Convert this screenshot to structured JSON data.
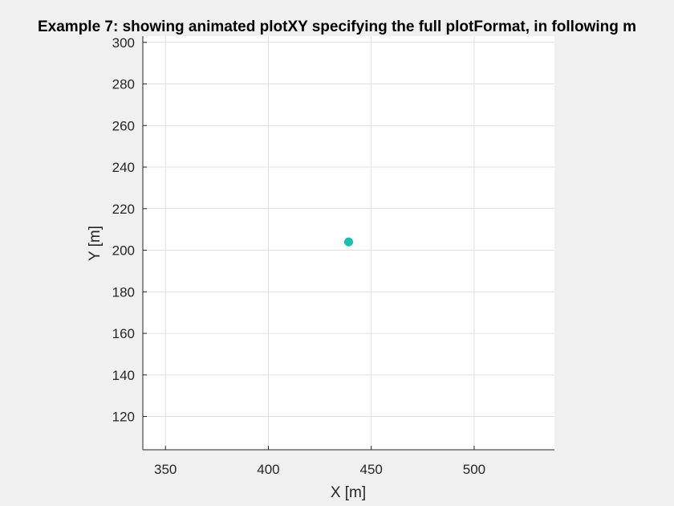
{
  "chart_data": {
    "type": "scatter",
    "title": "Example 7: showing animated plotXY specifying the full plotFormat, in following m",
    "xlabel": "X [m]",
    "ylabel": "Y [m]",
    "xlim": [
      339,
      539
    ],
    "ylim": [
      104,
      303
    ],
    "xticks": [
      350,
      400,
      450,
      500
    ],
    "yticks": [
      120,
      140,
      160,
      180,
      200,
      220,
      240,
      260,
      280,
      300
    ],
    "grid": true,
    "series": [
      {
        "color": "#1ABFAF",
        "points": [
          {
            "x": 439,
            "y": 204
          }
        ]
      }
    ],
    "colors": {
      "plot_bg": "#ffffff",
      "figure_bg": "#f0f0f0",
      "grid": "#dfdfdf",
      "axis": "#262626"
    }
  }
}
